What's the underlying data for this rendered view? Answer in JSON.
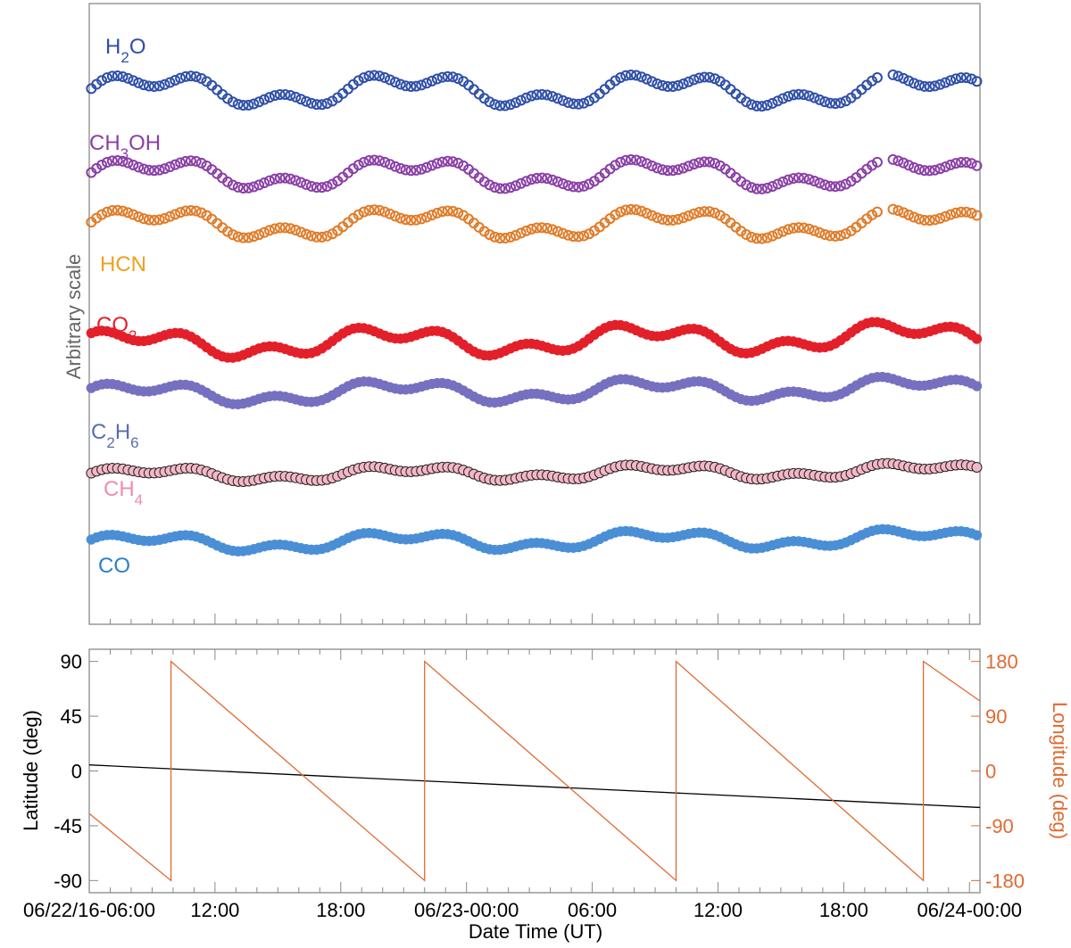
{
  "chart_data": [
    {
      "type": "scatter",
      "title": "",
      "ylabel": "Arbitrary scale",
      "y_scale": "arbitrary (series vertically offset, no y tick labels)",
      "x": [
        "06/22/16-06:00",
        "06/24-00:00"
      ],
      "series": [
        {
          "name": "H2O",
          "label_main": "H",
          "label_sub": "2",
          "label_tail": "O",
          "color": "#2f4fa8",
          "marker": "open-circle",
          "level": 8.6,
          "amp": 0.32,
          "phase": 0.0
        },
        {
          "name": "CH3OH",
          "label_main": "CH",
          "label_sub": "3",
          "label_tail": "OH",
          "color": "#8a3fa6",
          "marker": "open-circle",
          "level": 7.25,
          "amp": 0.3,
          "phase": 0.0
        },
        {
          "name": "HCN",
          "label_main": "HCN",
          "label_sub": "",
          "label_tail": "",
          "color": "#e07b28",
          "marker": "open-circle",
          "level": 6.45,
          "amp": 0.3,
          "phase": 0.0
        },
        {
          "name": "CO2",
          "label_main": "CO",
          "label_sub": "2",
          "label_tail": "",
          "color": "#e3202a",
          "marker": "filled-circle",
          "level": 4.5,
          "amp": 0.28,
          "phase": 0.5
        },
        {
          "name": "C2H6",
          "label_main": "C",
          "label_sub": "2",
          "label_tail": "H",
          "label_sub2": "6",
          "color": "#7670c0",
          "marker": "filled-circle",
          "level": 3.7,
          "amp": 0.22,
          "phase": 0.3
        },
        {
          "name": "CH4",
          "label_main": "CH",
          "label_sub": "4",
          "label_tail": "",
          "color": "#f4b7c6",
          "edge": "#222222",
          "marker": "filled-circle-edged",
          "level": 2.4,
          "amp": 0.15,
          "phase": 0.1
        },
        {
          "name": "CO",
          "label_main": "CO",
          "label_sub": "",
          "label_tail": "",
          "color": "#4a8fd6",
          "marker": "filled-circle",
          "level": 1.3,
          "amp": 0.18,
          "phase": 0.2
        }
      ],
      "series_label_colors": {
        "HCN": "#f0a020",
        "C2H6": "#5a6cb0",
        "CH4": "#f08cb0",
        "CO": "#2a7fd0"
      }
    },
    {
      "type": "line",
      "xlabel": "Date Time (UT)",
      "ylabel": "Latitude (deg)",
      "ylabel_right": "Longitude (deg)",
      "xlim": [
        0,
        42.5
      ],
      "ylim": [
        -100,
        100
      ],
      "ylim_right": [
        -200,
        200
      ],
      "xticks": [
        {
          "t": 0,
          "label": "06/22/16-06:00"
        },
        {
          "t": 6,
          "label": "12:00"
        },
        {
          "t": 12,
          "label": "18:00"
        },
        {
          "t": 18,
          "label": "06/23-00:00"
        },
        {
          "t": 24,
          "label": "06:00"
        },
        {
          "t": 30,
          "label": "12:00"
        },
        {
          "t": 36,
          "label": "18:00"
        },
        {
          "t": 42,
          "label": "06/24-00:00"
        }
      ],
      "yticks_left": [
        "90",
        "45",
        "0",
        "-45",
        "-90"
      ],
      "yticks_right": [
        "180",
        "90",
        "0",
        "-90",
        "-180"
      ],
      "latitude_line": {
        "color": "#000000",
        "x": [
          0,
          42.5
        ],
        "y": [
          5,
          -30
        ]
      },
      "longitude_line": {
        "color": "#e06a30",
        "x": [
          0,
          3.9,
          3.9,
          16.0,
          16.0,
          28.0,
          28.0,
          39.8,
          39.8,
          42.5
        ],
        "y": [
          -70,
          -180,
          180,
          -180,
          180,
          -180,
          180,
          -180,
          180,
          115
        ]
      },
      "right_axis_color": "#e06a30"
    }
  ]
}
